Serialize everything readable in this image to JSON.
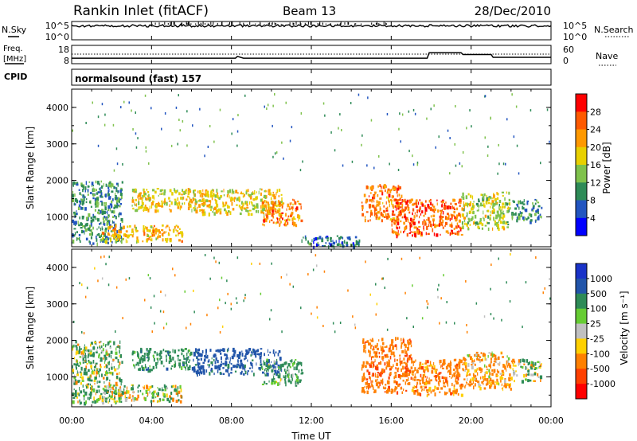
{
  "header": {
    "station": "Rankin Inlet (fitACF)",
    "beam": "Beam 13",
    "date": "28/Dec/2010"
  },
  "noise_panel": {
    "left_label": "N.Sky",
    "right_label": "N.Search",
    "left_ticks": [
      "10^5",
      "10^0"
    ],
    "right_ticks": [
      "10^5",
      "10^0"
    ]
  },
  "freq_panel": {
    "left_label_1": "Freq.",
    "left_label_2": "[MHz]",
    "right_label": "Nave",
    "left_ticks": [
      "18",
      "8"
    ],
    "right_ticks": [
      "60",
      "0"
    ]
  },
  "cpid": {
    "label": "CPID",
    "program": "normalsound (fast) 157"
  },
  "time_axis": {
    "label": "Time UT",
    "ticks": [
      "00:00",
      "04:00",
      "08:00",
      "12:00",
      "16:00",
      "20:00",
      "00:00"
    ]
  },
  "range_axis": {
    "label": "Slant Range [km]",
    "ticks": [
      "1000",
      "2000",
      "3000",
      "4000"
    ]
  },
  "power_scale": {
    "label": "Power [dB]",
    "ticks": [
      "4",
      "8",
      "12",
      "16",
      "20",
      "24",
      "28"
    ],
    "colors": [
      "#0000ff",
      "#2255c0",
      "#2e8b57",
      "#7fc24c",
      "#e8d000",
      "#ff9900",
      "#ff5a00",
      "#ff0000"
    ]
  },
  "velocity_scale": {
    "label": "Velocity [m s⁻¹]",
    "ticks": [
      "1000",
      "500",
      "100",
      "25",
      "-25",
      "-100",
      "-500",
      "-1000"
    ],
    "colors": [
      "#1a33c8",
      "#2255aa",
      "#2e8b57",
      "#66cc33",
      "#c0c0c0",
      "#ffd000",
      "#ff8000",
      "#ff4000",
      "#ff0000"
    ]
  },
  "chart_data": {
    "type": "heatmap",
    "title": "Rankin Inlet (fitACF)",
    "xlabel": "Time UT",
    "ylabel": "Slant Range [km]",
    "xlim": [
      "00:00",
      "24:00"
    ],
    "ylim": [
      180,
      4500
    ],
    "power": {
      "colorbar_label": "Power [dB]",
      "regions": [
        {
          "t0": 0.0,
          "t1": 2.5,
          "r0": 300,
          "r1": 2000,
          "level": 10
        },
        {
          "t0": 1.5,
          "t1": 5.5,
          "r0": 350,
          "r1": 800,
          "level": 20
        },
        {
          "t0": 3.0,
          "t1": 6.0,
          "r0": 1200,
          "r1": 1800,
          "level": 18
        },
        {
          "t0": 6.0,
          "t1": 10.5,
          "r0": 1100,
          "r1": 1800,
          "level": 18
        },
        {
          "t0": 9.5,
          "t1": 11.5,
          "r0": 800,
          "r1": 1500,
          "level": 24
        },
        {
          "t0": 11.5,
          "t1": 14.5,
          "r0": 200,
          "r1": 500,
          "level": 8
        },
        {
          "t0": 14.5,
          "t1": 16.5,
          "r0": 900,
          "r1": 1900,
          "level": 24
        },
        {
          "t0": 16.0,
          "t1": 19.5,
          "r0": 500,
          "r1": 1500,
          "level": 26
        },
        {
          "t0": 19.5,
          "t1": 22.0,
          "r0": 700,
          "r1": 1700,
          "level": 16
        },
        {
          "t0": 22.0,
          "t1": 23.5,
          "r0": 900,
          "r1": 1500,
          "level": 10
        }
      ]
    },
    "velocity": {
      "colorbar_label": "Velocity [m s⁻¹]",
      "regions": [
        {
          "t0": 0.0,
          "t1": 2.5,
          "r0": 300,
          "r1": 2000,
          "value": 100
        },
        {
          "t0": 1.5,
          "t1": 5.5,
          "r0": 350,
          "r1": 800,
          "value": 0
        },
        {
          "t0": 3.0,
          "t1": 6.0,
          "r0": 1200,
          "r1": 1800,
          "value": 300
        },
        {
          "t0": 6.0,
          "t1": 10.5,
          "r0": 1100,
          "r1": 1800,
          "value": 700
        },
        {
          "t0": 9.5,
          "t1": 11.5,
          "r0": 800,
          "r1": 1500,
          "value": 200
        },
        {
          "t0": 14.5,
          "t1": 17.0,
          "r0": 600,
          "r1": 2100,
          "value": -400
        },
        {
          "t0": 17.0,
          "t1": 19.5,
          "r0": 500,
          "r1": 1500,
          "value": -300
        },
        {
          "t0": 19.5,
          "t1": 22.0,
          "r0": 700,
          "r1": 1700,
          "value": -200
        },
        {
          "t0": 22.0,
          "t1": 23.5,
          "r0": 900,
          "r1": 1500,
          "value": 50
        }
      ]
    },
    "frequency_mhz": [
      {
        "t": 0,
        "v": 11
      },
      {
        "t": 8.2,
        "v": 11
      },
      {
        "t": 8.3,
        "v": 12
      },
      {
        "t": 8.6,
        "v": 11
      },
      {
        "t": 17.8,
        "v": 11
      },
      {
        "t": 17.9,
        "v": 14
      },
      {
        "t": 19.5,
        "v": 14
      },
      {
        "t": 19.6,
        "v": 13
      },
      {
        "t": 21.0,
        "v": 13
      },
      {
        "t": 21.1,
        "v": 11.5
      },
      {
        "t": 24,
        "v": 11.5
      }
    ],
    "nave_reference": 27
  }
}
